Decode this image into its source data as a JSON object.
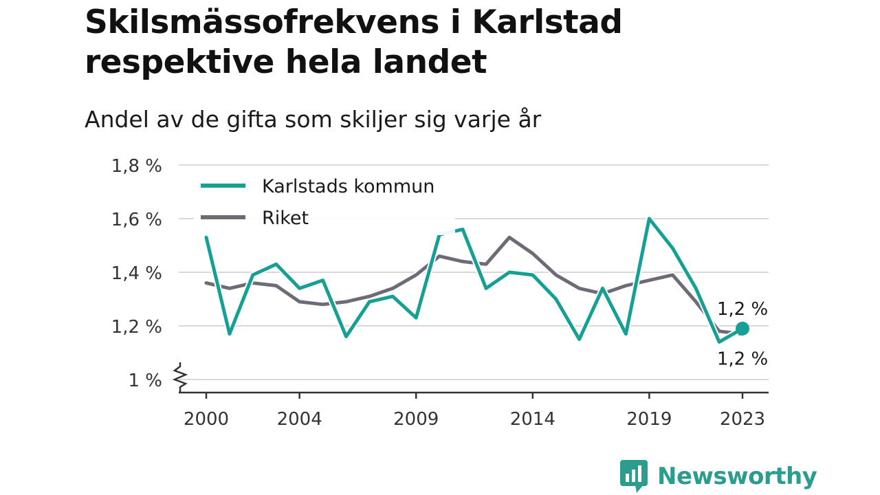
{
  "title": "Skilsmässofrekvens i Karlstad respektive hela landet",
  "subtitle": "Andel av de gifta som skiljer sig varje år",
  "brand": {
    "name": "Newsworthy",
    "icon": "bar-chart-speech-bubble-icon",
    "color": "#2a9d8f"
  },
  "chart_data": {
    "type": "line",
    "x": [
      2000,
      2001,
      2002,
      2003,
      2004,
      2005,
      2006,
      2007,
      2008,
      2009,
      2010,
      2011,
      2012,
      2013,
      2014,
      2015,
      2016,
      2017,
      2018,
      2019,
      2020,
      2021,
      2022,
      2023
    ],
    "xticks": [
      2000,
      2004,
      2009,
      2014,
      2019,
      2023
    ],
    "xtick_labels": [
      "2000",
      "2004",
      "2009",
      "2014",
      "2019",
      "2023"
    ],
    "yticks": [
      1.0,
      1.2,
      1.4,
      1.6,
      1.8
    ],
    "ytick_labels": [
      "1 %",
      "1,2 %",
      "1,4 %",
      "1,6 %",
      "1,8 %"
    ],
    "ylim": [
      0.95,
      1.8
    ],
    "axis_break": true,
    "grid": "horizontal",
    "legend_position": "top-left",
    "series": [
      {
        "name": "Karlstads kommun",
        "color": "#16a095",
        "values": [
          1.53,
          1.17,
          1.39,
          1.43,
          1.34,
          1.37,
          1.16,
          1.29,
          1.31,
          1.23,
          1.54,
          1.56,
          1.34,
          1.4,
          1.39,
          1.3,
          1.15,
          1.34,
          1.17,
          1.6,
          1.49,
          1.34,
          1.14,
          1.19
        ]
      },
      {
        "name": "Riket",
        "color": "#6d6b75",
        "values": [
          1.36,
          1.34,
          1.36,
          1.35,
          1.29,
          1.28,
          1.29,
          1.31,
          1.34,
          1.39,
          1.46,
          1.44,
          1.43,
          1.53,
          1.47,
          1.39,
          1.34,
          1.32,
          1.35,
          1.37,
          1.39,
          1.29,
          1.18,
          1.17
        ]
      }
    ],
    "annotations": [
      {
        "series": "Karlstads kommun",
        "x": 2023,
        "label": "1,2 %",
        "placement": "above"
      },
      {
        "series": "Riket",
        "x": 2023,
        "label": "1,2 %",
        "placement": "below"
      }
    ]
  }
}
